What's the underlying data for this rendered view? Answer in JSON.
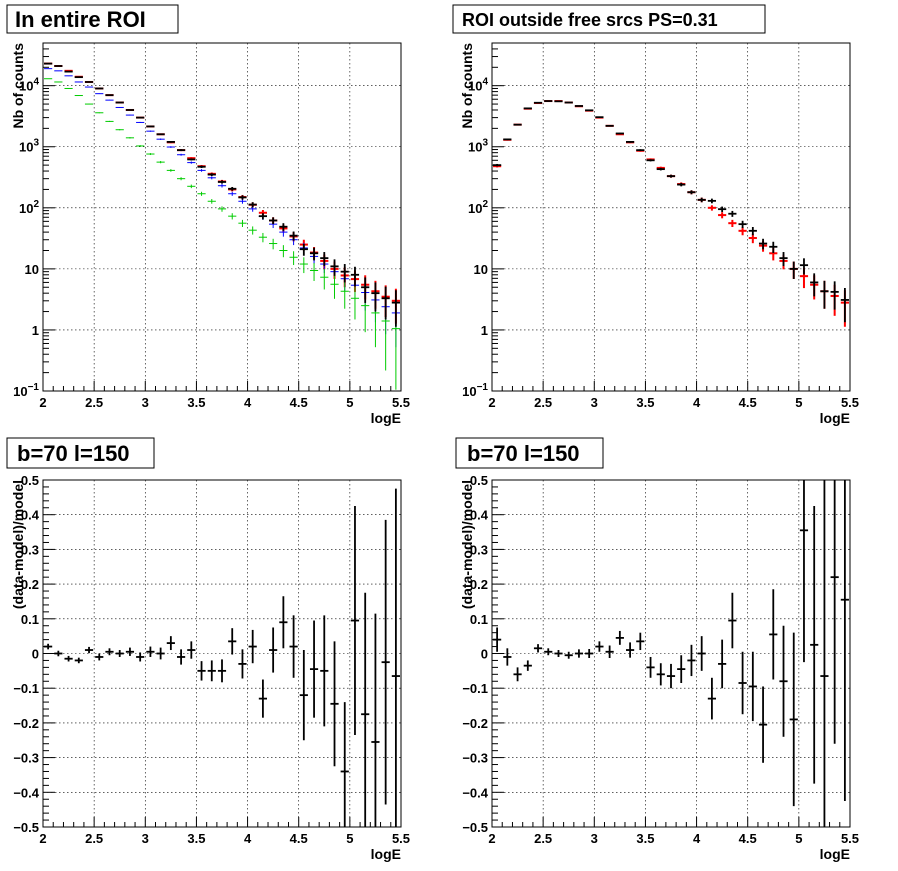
{
  "chart_data": [
    {
      "type": "scatter",
      "title": "In entire ROI",
      "xlabel": "logE",
      "ylabel": "Nb of counts",
      "xlim": [
        2,
        5.5
      ],
      "ylim": [
        0.1,
        50000
      ],
      "yscale": "log",
      "x_ticks": [
        "2",
        "2.5",
        "3",
        "3.5",
        "4",
        "4.5",
        "5",
        "5.5"
      ],
      "y_ticks": [
        {
          "value": 0.1,
          "mant": "10",
          "sup": "−1"
        },
        {
          "value": 1,
          "mant": "1",
          "sup": ""
        },
        {
          "value": 10,
          "mant": "10",
          "sup": ""
        },
        {
          "value": 100,
          "mant": "10",
          "sup": "2"
        },
        {
          "value": 1000,
          "mant": "10",
          "sup": "3"
        },
        {
          "value": 10000,
          "mant": "10",
          "sup": "4"
        }
      ],
      "grid": true,
      "series": [
        {
          "color": "#ff0000",
          "style": "errorbar",
          "x": [
            2.05,
            2.15,
            2.25,
            2.35,
            2.45,
            2.55,
            2.65,
            2.75,
            2.85,
            2.95,
            3.05,
            3.15,
            3.25,
            3.35,
            3.45,
            3.55,
            3.65,
            3.75,
            3.85,
            3.95,
            4.05,
            4.15,
            4.25,
            4.35,
            4.45,
            4.55,
            4.65,
            4.75,
            4.85,
            4.95,
            5.05,
            5.15,
            5.25,
            5.35,
            5.45
          ],
          "y": [
            23000,
            21000,
            17500,
            14000,
            11500,
            9000,
            7000,
            5300,
            4000,
            3000,
            2150,
            1600,
            1180,
            880,
            650,
            480,
            360,
            270,
            200,
            150,
            112,
            83,
            62,
            46,
            34,
            25,
            18.5,
            13.5,
            10,
            7.8,
            6.8,
            5.5,
            4.3,
            3.5,
            3.0
          ]
        },
        {
          "color": "#0000ff",
          "style": "errorbar",
          "x": [
            2.05,
            2.15,
            2.25,
            2.35,
            2.45,
            2.55,
            2.65,
            2.75,
            2.85,
            2.95,
            3.05,
            3.15,
            3.25,
            3.35,
            3.45,
            3.55,
            3.65,
            3.75,
            3.85,
            3.95,
            4.05,
            4.15,
            4.25,
            4.35,
            4.45,
            4.55,
            4.65,
            4.75,
            4.85,
            4.95,
            5.05,
            5.15,
            5.25,
            5.35,
            5.45
          ],
          "y": [
            19000,
            17500,
            14500,
            11500,
            9500,
            7400,
            5800,
            4400,
            3300,
            2500,
            1800,
            1330,
            990,
            740,
            550,
            410,
            310,
            230,
            170,
            128,
            96,
            72,
            54,
            40,
            30,
            22,
            16,
            12,
            9,
            6.9,
            5.4,
            4.1,
            3.1,
            2.4,
            1.9
          ]
        },
        {
          "color": "#00cc00",
          "style": "errorbar",
          "x": [
            2.05,
            2.15,
            2.25,
            2.35,
            2.45,
            2.55,
            2.65,
            2.75,
            2.85,
            2.95,
            3.05,
            3.15,
            3.25,
            3.35,
            3.45,
            3.55,
            3.65,
            3.75,
            3.85,
            3.95,
            4.05,
            4.15,
            4.25,
            4.35,
            4.45,
            4.55,
            4.65,
            4.75,
            4.85,
            4.95,
            5.05,
            5.15,
            5.25,
            5.35,
            5.45
          ],
          "y": [
            13000,
            11500,
            9000,
            6900,
            5000,
            3600,
            2600,
            1900,
            1400,
            1030,
            760,
            560,
            410,
            300,
            225,
            170,
            128,
            96,
            73,
            56,
            43,
            33,
            26,
            20,
            15.5,
            12,
            9.4,
            7.3,
            5.6,
            4.3,
            3.3,
            2.5,
            1.9,
            1.4,
            1.05
          ]
        },
        {
          "color": "#000000",
          "style": "errorbar",
          "x": [
            2.05,
            2.15,
            2.25,
            2.35,
            2.45,
            2.55,
            2.65,
            2.75,
            2.85,
            2.95,
            3.05,
            3.15,
            3.25,
            3.35,
            3.45,
            3.55,
            3.65,
            3.75,
            3.85,
            3.95,
            4.05,
            4.15,
            4.25,
            4.35,
            4.45,
            4.55,
            4.65,
            4.75,
            4.85,
            4.95,
            5.05,
            5.15,
            5.25,
            5.35,
            5.45
          ],
          "y": [
            23000,
            21000,
            17000,
            13800,
            11500,
            9000,
            7000,
            5300,
            4000,
            3000,
            2150,
            1600,
            1200,
            880,
            620,
            470,
            350,
            265,
            205,
            148,
            113,
            73,
            62,
            49,
            35,
            21,
            18,
            15,
            11,
            9,
            8,
            5,
            4,
            3.3,
            2.8
          ]
        }
      ]
    },
    {
      "type": "scatter",
      "title": "ROI outside free srcs PS=0.31",
      "xlabel": "logE",
      "ylabel": "Nb of counts",
      "xlim": [
        2,
        5.5
      ],
      "ylim": [
        0.1,
        50000
      ],
      "yscale": "log",
      "x_ticks": [
        "2",
        "2.5",
        "3",
        "3.5",
        "4",
        "4.5",
        "5",
        "5.5"
      ],
      "y_ticks": [
        {
          "value": 0.1,
          "mant": "10",
          "sup": "−1"
        },
        {
          "value": 1,
          "mant": "1",
          "sup": ""
        },
        {
          "value": 10,
          "mant": "10",
          "sup": ""
        },
        {
          "value": 100,
          "mant": "10",
          "sup": "2"
        },
        {
          "value": 1000,
          "mant": "10",
          "sup": "3"
        },
        {
          "value": 10000,
          "mant": "10",
          "sup": "4"
        }
      ],
      "grid": true,
      "series": [
        {
          "color": "#ff0000",
          "style": "errorbar",
          "x": [
            2.05,
            2.15,
            2.25,
            2.35,
            2.45,
            2.55,
            2.65,
            2.75,
            2.85,
            2.95,
            3.05,
            3.15,
            3.25,
            3.35,
            3.45,
            3.55,
            3.65,
            3.75,
            3.85,
            3.95,
            4.05,
            4.15,
            4.25,
            4.35,
            4.45,
            4.55,
            4.65,
            4.75,
            4.85,
            4.95,
            5.05,
            5.15,
            5.25,
            5.35,
            5.45
          ],
          "y": [
            480,
            1300,
            2300,
            4200,
            5200,
            5600,
            5600,
            5300,
            4600,
            3900,
            3000,
            2200,
            1600,
            1180,
            860,
            620,
            450,
            330,
            245,
            180,
            135,
            100,
            76,
            56,
            42,
            32,
            24,
            18,
            13.5,
            10,
            7.6,
            5.5,
            4.3,
            3.6,
            2.8
          ]
        },
        {
          "color": "#000000",
          "style": "errorbar",
          "x": [
            2.05,
            2.15,
            2.25,
            2.35,
            2.45,
            2.55,
            2.65,
            2.75,
            2.85,
            2.95,
            3.05,
            3.15,
            3.25,
            3.35,
            3.45,
            3.55,
            3.65,
            3.75,
            3.85,
            3.95,
            4.05,
            4.15,
            4.25,
            4.35,
            4.45,
            4.55,
            4.65,
            4.75,
            4.85,
            4.95,
            5.05,
            5.15,
            5.25,
            5.35,
            5.45
          ],
          "y": [
            500,
            1320,
            2300,
            4250,
            5250,
            5600,
            5550,
            5300,
            4650,
            3950,
            3050,
            2200,
            1650,
            1200,
            880,
            600,
            430,
            330,
            240,
            180,
            135,
            130,
            95,
            80,
            54,
            42,
            26,
            23,
            15,
            10,
            11.5,
            6,
            4.3,
            4.2,
            3.1
          ]
        }
      ]
    },
    {
      "type": "scatter",
      "title": "b=70 l=150",
      "xlabel": "logE",
      "ylabel": "(data-model)/model",
      "xlim": [
        2,
        5.5
      ],
      "ylim": [
        -0.5,
        0.5
      ],
      "x_ticks": [
        "2",
        "2.5",
        "3",
        "3.5",
        "4",
        "4.5",
        "5",
        "5.5"
      ],
      "y_ticks": [
        {
          "value": -0.5,
          "label": "−0.5"
        },
        {
          "value": -0.4,
          "label": "−0.4"
        },
        {
          "value": -0.3,
          "label": "−0.3"
        },
        {
          "value": -0.2,
          "label": "−0.2"
        },
        {
          "value": -0.1,
          "label": "−0.1"
        },
        {
          "value": 0,
          "label": "0"
        },
        {
          "value": 0.1,
          "label": "0.1"
        },
        {
          "value": 0.2,
          "label": "0.2"
        },
        {
          "value": 0.3,
          "label": "0.3"
        },
        {
          "value": 0.4,
          "label": "0.4"
        },
        {
          "value": 0.5,
          "label": "0.5"
        }
      ],
      "grid": true,
      "series": [
        {
          "color": "#000000",
          "style": "errorbar",
          "x": [
            2.05,
            2.15,
            2.25,
            2.35,
            2.45,
            2.55,
            2.65,
            2.75,
            2.85,
            2.95,
            3.05,
            3.15,
            3.25,
            3.35,
            3.45,
            3.55,
            3.65,
            3.75,
            3.85,
            3.95,
            4.05,
            4.15,
            4.25,
            4.35,
            4.45,
            4.55,
            4.65,
            4.75,
            4.85,
            4.95,
            5.05,
            5.15,
            5.25,
            5.35,
            5.45
          ],
          "y": [
            0.02,
            0.0,
            -0.015,
            -0.02,
            0.01,
            -0.01,
            0.005,
            0.0,
            0.005,
            -0.01,
            0.005,
            0.0,
            0.03,
            -0.01,
            0.01,
            -0.05,
            -0.05,
            -0.05,
            0.035,
            -0.03,
            0.02,
            -0.13,
            0.01,
            0.09,
            0.02,
            -0.12,
            -0.045,
            -0.05,
            -0.145,
            -0.34,
            0.095,
            -0.175,
            -0.255,
            -0.025,
            -0.065
          ],
          "err": [
            0.008,
            0.008,
            0.008,
            0.008,
            0.009,
            0.01,
            0.01,
            0.01,
            0.012,
            0.013,
            0.015,
            0.017,
            0.02,
            0.022,
            0.025,
            0.028,
            0.03,
            0.033,
            0.038,
            0.042,
            0.048,
            0.055,
            0.065,
            0.075,
            0.09,
            0.13,
            0.14,
            0.16,
            0.18,
            0.2,
            0.33,
            0.35,
            0.37,
            0.41,
            0.54
          ]
        }
      ]
    },
    {
      "type": "scatter",
      "title": "b=70 l=150",
      "xlabel": "logE",
      "ylabel": "(data-model)/model",
      "xlim": [
        2,
        5.5
      ],
      "ylim": [
        -0.5,
        0.5
      ],
      "x_ticks": [
        "2",
        "2.5",
        "3",
        "3.5",
        "4",
        "4.5",
        "5",
        "5.5"
      ],
      "y_ticks": [
        {
          "value": -0.5,
          "label": "−0.5"
        },
        {
          "value": -0.4,
          "label": "−0.4"
        },
        {
          "value": -0.3,
          "label": "−0.3"
        },
        {
          "value": -0.2,
          "label": "−0.2"
        },
        {
          "value": -0.1,
          "label": "−0.1"
        },
        {
          "value": 0,
          "label": "0"
        },
        {
          "value": 0.1,
          "label": "0.1"
        },
        {
          "value": 0.2,
          "label": "0.2"
        },
        {
          "value": 0.3,
          "label": "0.3"
        },
        {
          "value": 0.4,
          "label": "0.4"
        },
        {
          "value": 0.5,
          "label": "0.5"
        }
      ],
      "grid": true,
      "series": [
        {
          "color": "#000000",
          "style": "errorbar",
          "x": [
            2.05,
            2.15,
            2.25,
            2.35,
            2.45,
            2.55,
            2.65,
            2.75,
            2.85,
            2.95,
            3.05,
            3.15,
            3.25,
            3.35,
            3.45,
            3.55,
            3.65,
            3.75,
            3.85,
            3.95,
            4.05,
            4.15,
            4.25,
            4.35,
            4.45,
            4.55,
            4.65,
            4.75,
            4.85,
            4.95,
            5.05,
            5.15,
            5.25,
            5.35,
            5.45
          ],
          "y": [
            0.04,
            -0.01,
            -0.06,
            -0.035,
            0.015,
            0.005,
            0.0,
            -0.005,
            0.0,
            0.0,
            0.02,
            0.005,
            0.045,
            0.01,
            0.035,
            -0.04,
            -0.06,
            -0.065,
            -0.045,
            -0.02,
            0.0,
            -0.13,
            -0.03,
            0.095,
            -0.085,
            -0.095,
            -0.205,
            0.055,
            -0.08,
            -0.19,
            0.355,
            0.025,
            -0.065,
            0.22,
            0.155
          ],
          "err": [
            0.035,
            0.025,
            0.02,
            0.015,
            0.012,
            0.01,
            0.01,
            0.01,
            0.012,
            0.013,
            0.015,
            0.018,
            0.02,
            0.022,
            0.025,
            0.03,
            0.032,
            0.035,
            0.04,
            0.045,
            0.05,
            0.06,
            0.07,
            0.08,
            0.09,
            0.1,
            0.11,
            0.13,
            0.16,
            0.25,
            0.38,
            0.4,
            0.57,
            0.48,
            0.58
          ]
        }
      ]
    }
  ]
}
